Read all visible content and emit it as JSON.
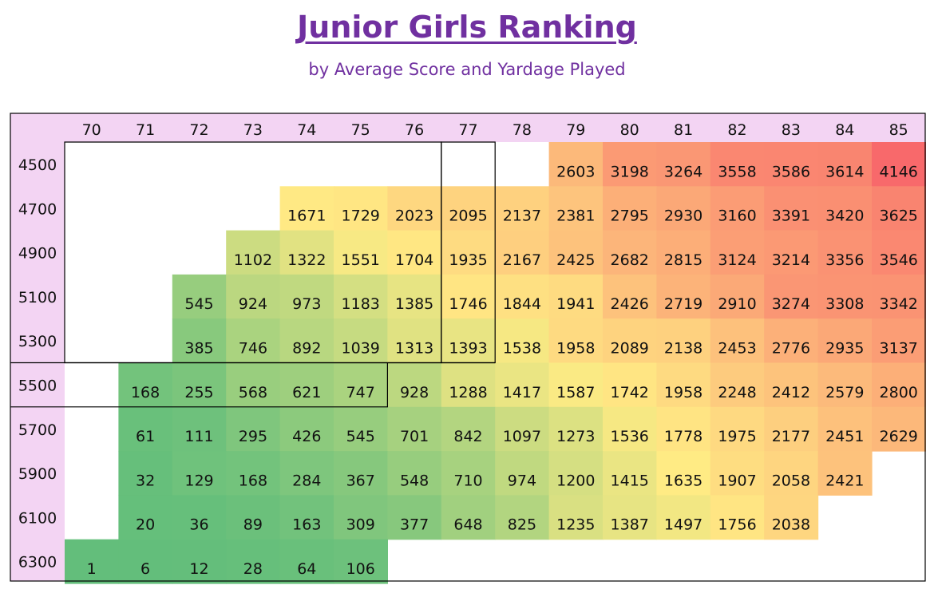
{
  "title": "Junior Girls Ranking",
  "subtitle": "by Average Score and Yardage Played",
  "chart_data": {
    "type": "heatmap",
    "title": "Junior Girls Ranking",
    "subtitle": "by Average Score and Yardage Played",
    "x": [
      "70",
      "71",
      "72",
      "73",
      "74",
      "75",
      "76",
      "77",
      "78",
      "79",
      "80",
      "81",
      "82",
      "83",
      "84",
      "85"
    ],
    "y": [
      "4500",
      "4700",
      "4900",
      "5100",
      "5300",
      "5500",
      "5700",
      "5900",
      "6100",
      "6300"
    ],
    "values": [
      [
        null,
        null,
        null,
        null,
        null,
        null,
        null,
        null,
        null,
        2603,
        3198,
        3264,
        3558,
        3586,
        3614,
        4146
      ],
      [
        null,
        null,
        null,
        null,
        1671,
        1729,
        2023,
        2095,
        2137,
        2381,
        2795,
        2930,
        3160,
        3391,
        3420,
        3625
      ],
      [
        null,
        null,
        null,
        1102,
        1322,
        1551,
        1704,
        1935,
        2167,
        2425,
        2682,
        2815,
        3124,
        3214,
        3356,
        3546
      ],
      [
        null,
        null,
        545,
        924,
        973,
        1183,
        1385,
        1746,
        1844,
        1941,
        2426,
        2719,
        2910,
        3274,
        3308,
        3342
      ],
      [
        null,
        null,
        385,
        746,
        892,
        1039,
        1313,
        1393,
        1538,
        1958,
        2089,
        2138,
        2453,
        2776,
        2935,
        3137
      ],
      [
        null,
        168,
        255,
        568,
        621,
        747,
        928,
        1288,
        1417,
        1587,
        1742,
        1958,
        2248,
        2412,
        2579,
        2800
      ],
      [
        null,
        61,
        111,
        295,
        426,
        545,
        701,
        842,
        1097,
        1273,
        1536,
        1778,
        1975,
        2177,
        2451,
        2629
      ],
      [
        null,
        32,
        129,
        168,
        284,
        367,
        548,
        710,
        974,
        1200,
        1415,
        1635,
        1907,
        2058,
        2421,
        null
      ],
      [
        null,
        20,
        36,
        89,
        163,
        309,
        377,
        648,
        825,
        1235,
        1387,
        1497,
        1756,
        2038,
        null,
        null
      ],
      [
        1,
        6,
        12,
        28,
        64,
        106,
        null,
        null,
        null,
        null,
        null,
        null,
        null,
        null,
        null,
        null
      ]
    ],
    "color_scale": {
      "low": "#63be7b",
      "mid": "#ffeb84",
      "high": "#f8696b"
    },
    "header_color": "#f3d4f3"
  }
}
